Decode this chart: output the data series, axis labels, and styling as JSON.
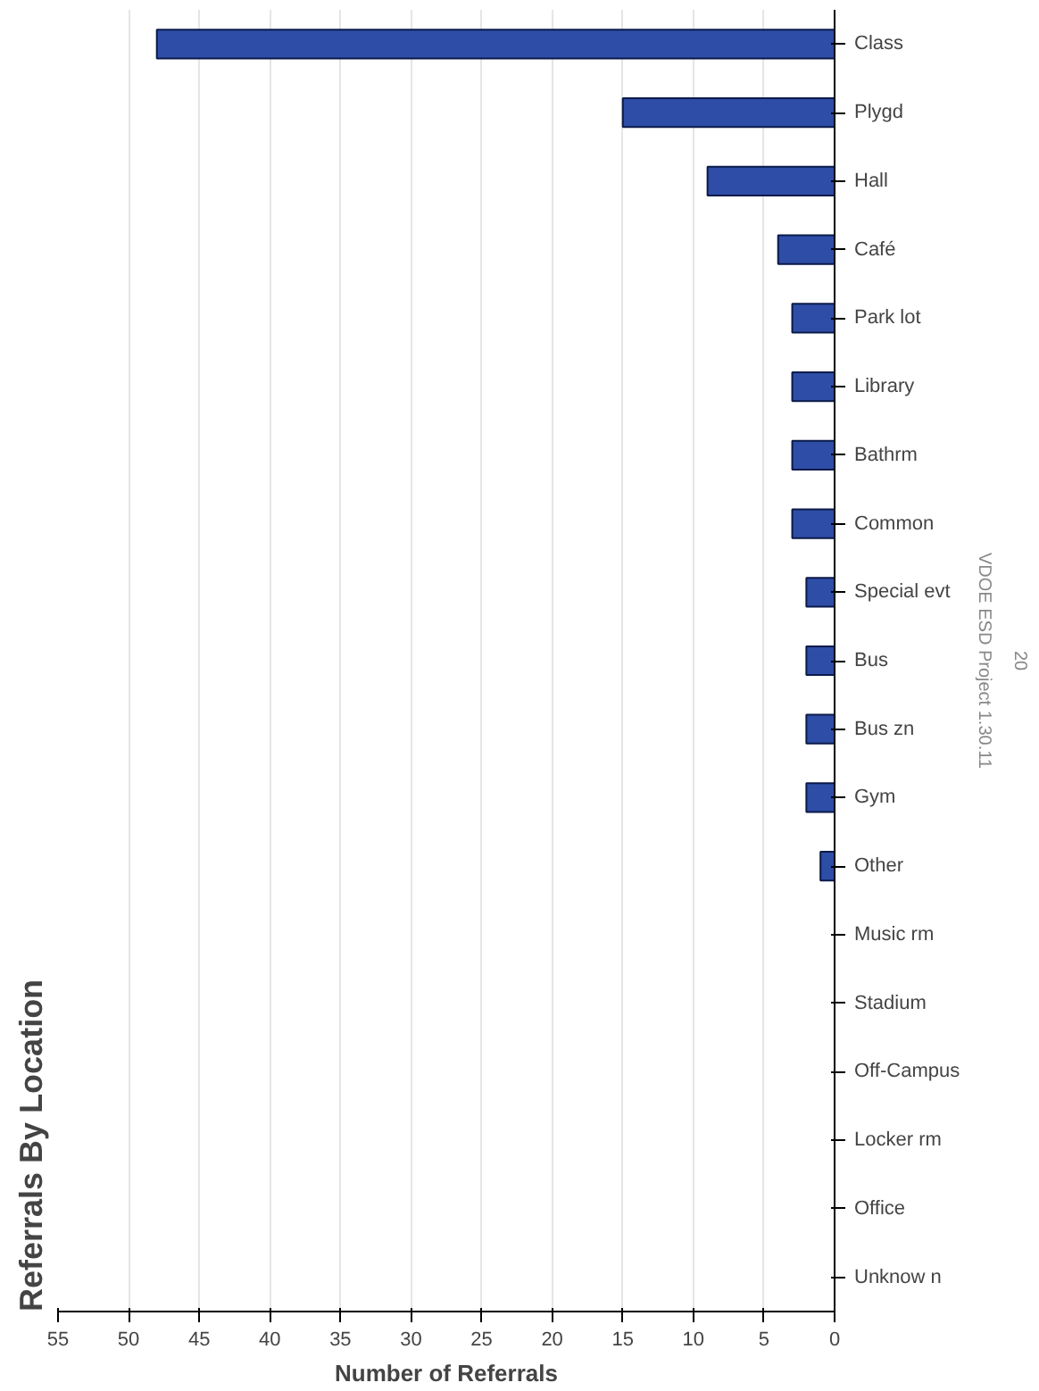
{
  "chart_data": {
    "type": "bar",
    "orientation": "horizontal",
    "title": "Referrals By Location",
    "xlabel": "Number of Referrals",
    "categories": [
      "Class",
      "Plygd",
      "Hall",
      "Café",
      "Park lot",
      "Library",
      "Bathrm",
      "Common",
      "Special evt",
      "Bus",
      "Bus zn",
      "Gym",
      "Other",
      "Music rm",
      "Stadium",
      "Off-Campus",
      "Locker rm",
      "Office",
      "Unknow n"
    ],
    "values": [
      48,
      15,
      9,
      4,
      3,
      3,
      3,
      3,
      2,
      2,
      2,
      2,
      1,
      0,
      0,
      0,
      0,
      0,
      0
    ],
    "color": "#2e4da6",
    "xlim": [
      55,
      0
    ],
    "xticks": [
      0,
      5,
      10,
      15,
      20,
      25,
      30,
      35,
      40,
      45,
      50,
      55
    ],
    "grid": "x",
    "annotations": [
      "VDOE ESD Project 1.30.11",
      "20"
    ]
  }
}
